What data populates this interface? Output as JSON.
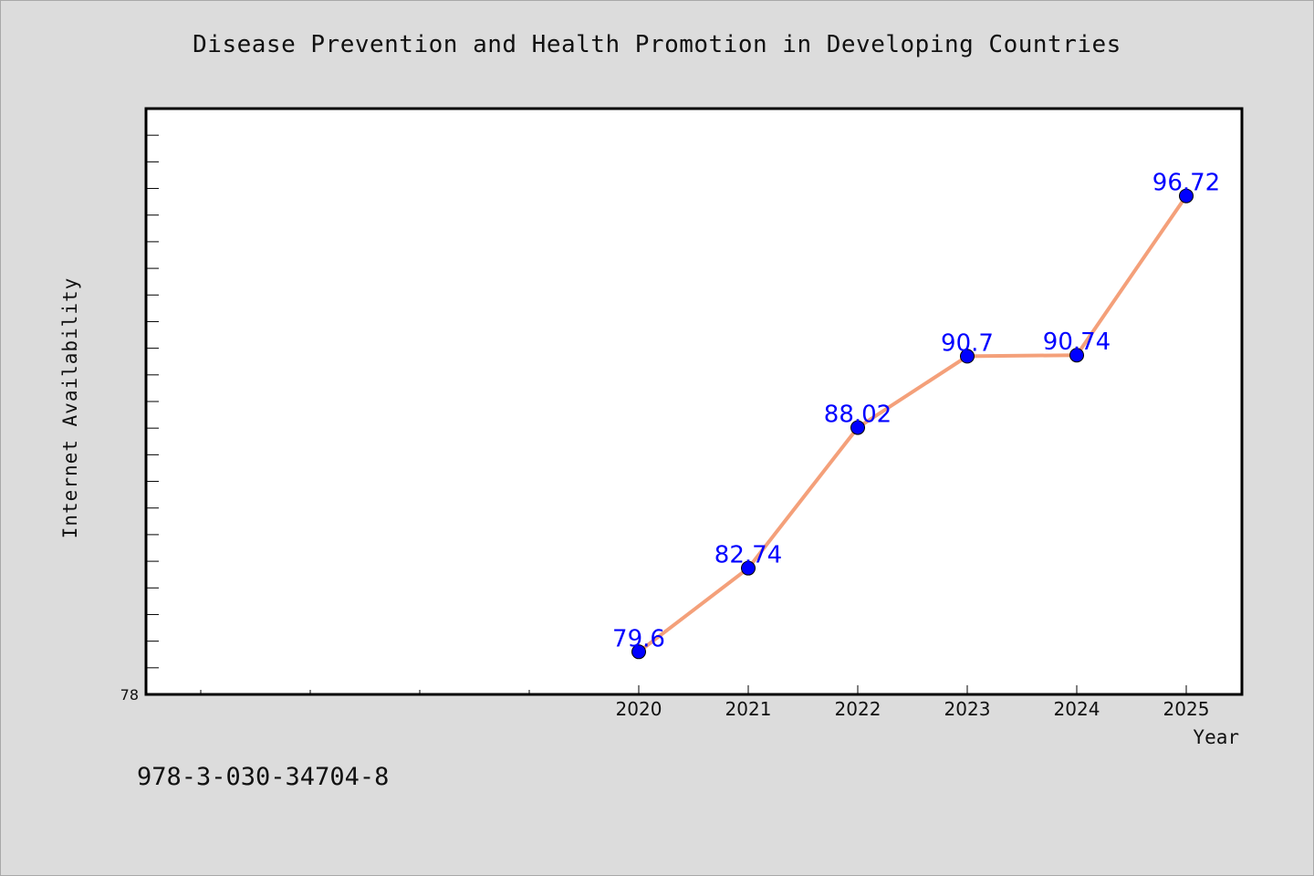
{
  "chart_data": {
    "type": "line",
    "title": "Disease Prevention and Health Promotion in Developing Countries",
    "xlabel": "Year",
    "ylabel": "Internet Availability",
    "x_tick_labels": [
      "2020",
      "2021",
      "2022",
      "2023",
      "2024",
      "2025"
    ],
    "y_tick_labels": [
      "78"
    ],
    "y_tick_values": [
      78
    ],
    "ylim": [
      78,
      100
    ],
    "x_axis_slots": 10,
    "x_first_category_slot": 4.5,
    "grid": false,
    "series": [
      {
        "categories": [
          "2020",
          "2021",
          "2022",
          "2023",
          "2024",
          "2025"
        ],
        "values": [
          79.6,
          82.74,
          88.02,
          90.7,
          90.74,
          96.72
        ],
        "data_labels": [
          "79.6",
          "82.74",
          "88.02",
          "90.7",
          "90.74",
          "96.72"
        ],
        "line_color": "#f4a07a",
        "marker_color": "#0000ff"
      }
    ],
    "footer": "978-3-030-34704-8",
    "colors": {
      "background": "#dcdcdc",
      "plot_background": "#ffffff",
      "data_label": "#0000ff"
    }
  }
}
